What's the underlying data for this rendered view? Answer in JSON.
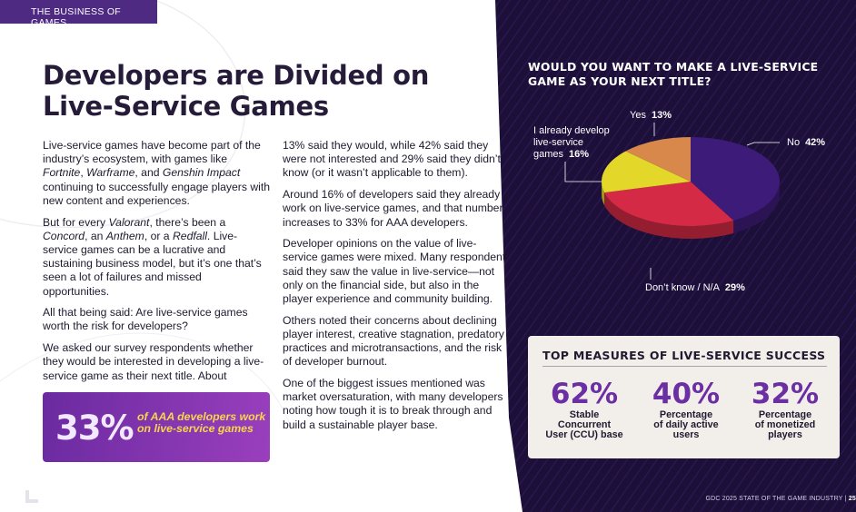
{
  "header": {
    "section_tag": "THE BUSINESS OF GAMES"
  },
  "article": {
    "headline_line1": "Developers are Divided on",
    "headline_line2": "Live-Service Games",
    "p1_a": "Live-service games have become part of the industry’s ecosystem, with games like ",
    "p1_game1": "Fortnite",
    "p1_b": ", ",
    "p1_game2": "Warframe",
    "p1_c": ", and ",
    "p1_game3": "Genshin Impact",
    "p1_d": " continuing to successfully engage players with new content and experiences.",
    "p2_a": "But for every ",
    "p2_game1": "Valorant",
    "p2_b": ", there’s been a ",
    "p2_game2": "Concord",
    "p2_c": ", an ",
    "p2_game3": "Anthem",
    "p2_d": ", or a ",
    "p2_game4": "Redfall",
    "p2_e": ". Live-service games can be a lucrative and sustaining business model, but it’s one that’s seen a lot of failures and missed opportunities.",
    "p3": "All that being said: Are live-service games worth the risk for developers?",
    "p4": "We asked our survey respondents whether they would be interested in developing a live-service game as their next title. About",
    "p5": "13% said they would, while 42% said they were not interested and 29% said they didn’t know (or it wasn’t applicable to them).",
    "p6": "Around 16% of developers said they already work on live-service games, and that number increases to 33% for AAA developers.",
    "p7": "Developer opinions on the value of live-service games were mixed. Many respondents said they saw the value in live-service—not only on the financial side, but also in the player experience and community building.",
    "p8": "Others noted their concerns about declining player interest, creative stagnation, predatory practices and microtransactions, and the risk of developer burnout.",
    "p9": "One of the biggest issues mentioned was market oversaturation, with many developers noting how tough it is to break through and build a sustainable player base."
  },
  "callout": {
    "value": "33%",
    "text": "of AAA developers work on live-service games"
  },
  "chart_data": {
    "type": "pie",
    "title": "WOULD YOU WANT TO MAKE A LIVE-SERVICE GAME AS YOUR NEXT TITLE?",
    "slices": [
      {
        "label": "No",
        "value": 42,
        "value_label": "42%",
        "color": "#3d1b78"
      },
      {
        "label": "Don't know / N/A",
        "value": 29,
        "value_label": "29%",
        "color": "#d42a45"
      },
      {
        "label": "I already develop live-service games",
        "value": 16,
        "value_label": "16%",
        "color": "#e3d72a"
      },
      {
        "label": "Yes",
        "value": 13,
        "value_label": "13%",
        "color": "#d8884a"
      }
    ]
  },
  "pie_labels": {
    "no_label": "No",
    "no_value": "42%",
    "dk_label": "Don’t know / N/A",
    "dk_value": "29%",
    "already_label_1": "I already develop",
    "already_label_2": "live-service",
    "already_label_3": "games",
    "already_value": "16%",
    "yes_label": "Yes",
    "yes_value": "13%"
  },
  "measures": {
    "title": "TOP MEASURES OF LIVE-SERVICE SUCCESS",
    "items": [
      {
        "value": "62%",
        "line1": "Stable",
        "line2": "Concurrent",
        "line3": "User (CCU) base"
      },
      {
        "value": "40%",
        "line1": "Percentage",
        "line2": "of daily active",
        "line3": "users"
      },
      {
        "value": "32%",
        "line1": "Percentage",
        "line2": "of monetized",
        "line3": "players"
      }
    ]
  },
  "footer": {
    "publication": "GDC 2025 STATE OF THE GAME INDUSTRY  |",
    "page": "25"
  },
  "colors": {
    "purple_dark": "#1d0f3a",
    "purple_accent": "#6b2ea3",
    "callout_yellow": "#f6d64a"
  }
}
